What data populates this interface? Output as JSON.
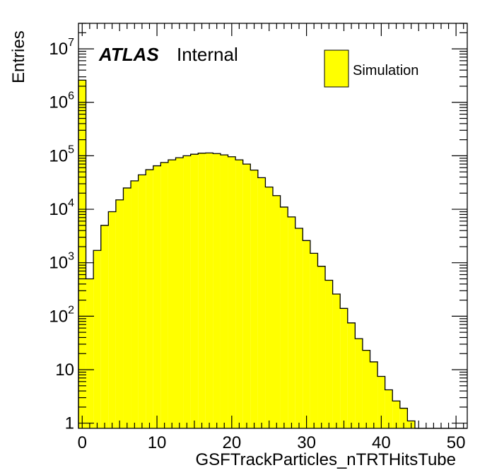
{
  "chart_data": {
    "type": "bar",
    "title": "",
    "xlabel": "GSFTrackParticles_nTRTHitsTube",
    "ylabel": "Entries",
    "x_bin_width": 1,
    "xlim": [
      -0.5,
      51.5
    ],
    "ylim": [
      0.8,
      30000000
    ],
    "y_scale": "log",
    "x_ticks": [
      0,
      10,
      20,
      30,
      40,
      50
    ],
    "x_tick_labels": [
      "0",
      "10",
      "20",
      "30",
      "40",
      "50"
    ],
    "y_ticks": [
      {
        "value": 1,
        "base": "1",
        "exp": ""
      },
      {
        "value": 10,
        "base": "10",
        "exp": ""
      },
      {
        "value": 100,
        "base": "10",
        "exp": "2"
      },
      {
        "value": 1000,
        "base": "10",
        "exp": "3"
      },
      {
        "value": 10000,
        "base": "10",
        "exp": "4"
      },
      {
        "value": 100000,
        "base": "10",
        "exp": "5"
      },
      {
        "value": 1000000,
        "base": "10",
        "exp": "6"
      },
      {
        "value": 10000000,
        "base": "10",
        "exp": "7"
      }
    ],
    "bins_x": [
      0,
      1,
      2,
      3,
      4,
      5,
      6,
      7,
      8,
      9,
      10,
      11,
      12,
      13,
      14,
      15,
      16,
      17,
      18,
      19,
      20,
      21,
      22,
      23,
      24,
      25,
      26,
      27,
      28,
      29,
      30,
      31,
      32,
      33,
      34,
      35,
      36,
      37,
      38,
      39,
      40,
      41,
      42,
      43,
      44,
      45,
      46,
      47,
      48,
      49,
      50,
      51
    ],
    "values": [
      2600000,
      500,
      1700,
      5000,
      9000,
      15000,
      25000,
      34000,
      44000,
      55000,
      65000,
      75000,
      84000,
      92000,
      100000,
      107000,
      112000,
      113000,
      110000,
      104000,
      96000,
      84000,
      70000,
      54000,
      39000,
      26000,
      18000,
      11000,
      7200,
      4400,
      2600,
      1500,
      860,
      470,
      260,
      140,
      75,
      38,
      23,
      14,
      7.5,
      4.2,
      2.6,
      1.9,
      1.1,
      0,
      0,
      0,
      0,
      0,
      0,
      0
    ],
    "series": [
      {
        "name": "Simulation",
        "color": "#ffff00"
      }
    ],
    "overlay_label": {
      "bold": "ATLAS",
      "normal": "Internal"
    },
    "legend_position": "top-right",
    "grid": false
  }
}
